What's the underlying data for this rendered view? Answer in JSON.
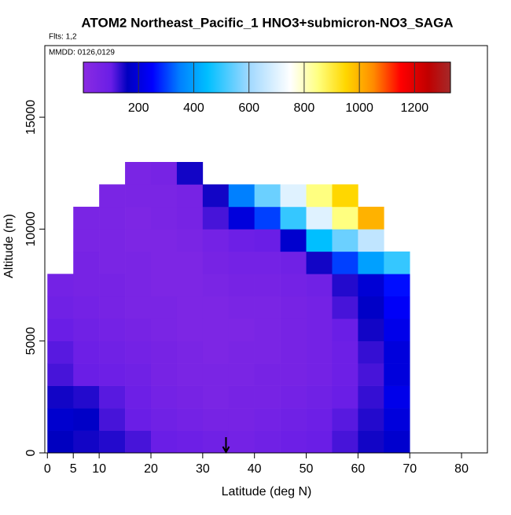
{
  "chart_data": {
    "type": "heatmap",
    "title": "ATOM2 Northeast_Pacific_1 HNO3+submicron-NO3_SAGA",
    "subtitle": "Flts: 1,2",
    "annotation": "MMDD: 0126,0129",
    "x_label": "Latitude (deg N)",
    "y_label": "Altitude (m)",
    "xlim": [
      -0.5,
      85
    ],
    "xticks": [
      0,
      5,
      10,
      20,
      30,
      40,
      50,
      60,
      70,
      80
    ],
    "ylim": [
      0,
      18200
    ],
    "yticks": [
      0,
      5000,
      10000,
      15000
    ],
    "x_edges": [
      0,
      5,
      10,
      15,
      20,
      25,
      30,
      35,
      40,
      45,
      50,
      55,
      60,
      65,
      70
    ],
    "y_edges": [
      0,
      1000,
      2000,
      3000,
      4000,
      5000,
      6000,
      7000,
      8000,
      9000,
      10000,
      11000,
      12000,
      13000
    ],
    "values": [
      [
        160,
        150,
        140,
        120,
        100,
        90,
        80,
        70,
        80,
        90,
        100,
        120,
        150,
        180
      ],
      [
        180,
        170,
        120,
        100,
        80,
        70,
        60,
        60,
        70,
        80,
        90,
        110,
        140,
        200
      ],
      [
        150,
        140,
        110,
        90,
        70,
        60,
        50,
        60,
        60,
        70,
        80,
        100,
        130,
        220
      ],
      [
        120,
        100,
        90,
        80,
        60,
        50,
        50,
        50,
        60,
        60,
        70,
        90,
        120,
        200
      ],
      [
        110,
        90,
        80,
        70,
        60,
        50,
        40,
        50,
        50,
        60,
        70,
        90,
        130,
        200
      ],
      [
        100,
        80,
        70,
        60,
        50,
        40,
        40,
        40,
        50,
        60,
        70,
        100,
        150,
        220
      ],
      [
        80,
        70,
        60,
        50,
        50,
        40,
        40,
        50,
        50,
        60,
        70,
        120,
        170,
        240
      ],
      [
        70,
        60,
        60,
        50,
        40,
        40,
        50,
        60,
        60,
        70,
        80,
        140,
        190,
        260
      ],
      [
        null,
        60,
        50,
        50,
        40,
        40,
        60,
        70,
        70,
        80,
        150,
        300,
        400,
        500
      ],
      [
        null,
        50,
        50,
        40,
        40,
        50,
        70,
        90,
        100,
        180,
        450,
        550,
        650,
        null
      ],
      [
        null,
        50,
        50,
        40,
        50,
        60,
        120,
        200,
        300,
        500,
        700,
        850,
        1000,
        null
      ],
      [
        null,
        null,
        50,
        50,
        50,
        60,
        150,
        350,
        550,
        700,
        850,
        950,
        null,
        null
      ],
      [
        null,
        null,
        null,
        50,
        60,
        150,
        null,
        null,
        null,
        null,
        null,
        null,
        null,
        null
      ]
    ],
    "colorbar": {
      "lim": [
        0,
        1330
      ],
      "ticks": [
        200,
        400,
        600,
        800,
        1000,
        1200
      ]
    },
    "colormap": [
      [
        0,
        "#8a2be2"
      ],
      [
        100,
        "#6a1ee6"
      ],
      [
        160,
        "#0000c0"
      ],
      [
        250,
        "#0000ff"
      ],
      [
        350,
        "#0080ff"
      ],
      [
        450,
        "#00bfff"
      ],
      [
        600,
        "#a0d8ff"
      ],
      [
        750,
        "#ffffff"
      ],
      [
        850,
        "#ffff80"
      ],
      [
        950,
        "#ffd700"
      ],
      [
        1050,
        "#ff8c00"
      ],
      [
        1150,
        "#ff0000"
      ],
      [
        1250,
        "#c00000"
      ],
      [
        1330,
        "#a52a2a"
      ]
    ],
    "arrow_x": 34.5
  }
}
